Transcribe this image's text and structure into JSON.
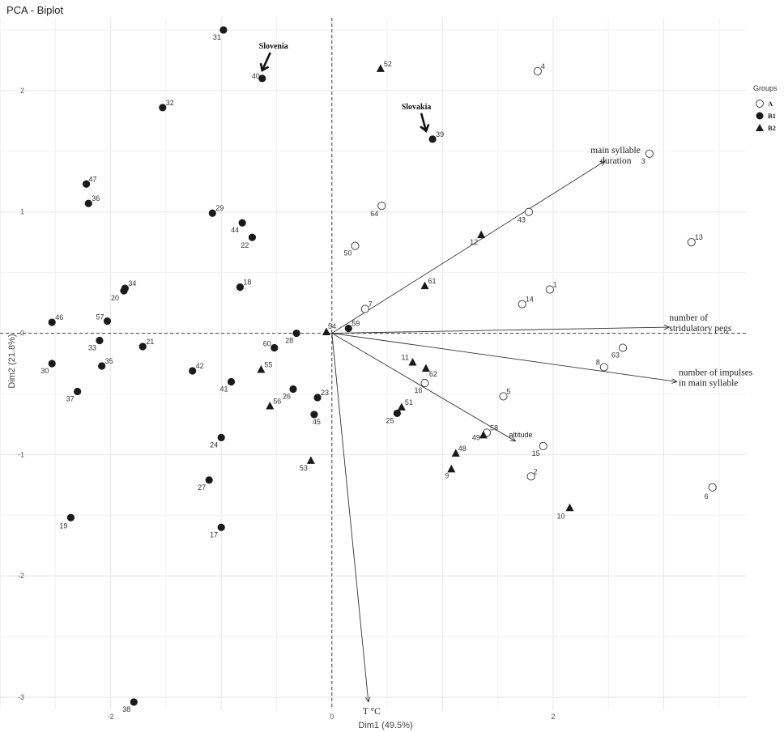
{
  "chart_data": {
    "type": "scatter",
    "title": "PCA - Biplot",
    "xlabel": "Dim1 (49.5%)",
    "ylabel": "Dim2 (21.8%)",
    "xlim": [
      -3.0,
      3.75
    ],
    "ylim": [
      -3.1,
      2.6
    ],
    "x_ticks": [
      -2,
      0,
      2
    ],
    "y_ticks": [
      -3,
      -2,
      -1,
      0,
      1,
      2
    ],
    "grid": true,
    "legend": {
      "title": "Groups",
      "position": "right",
      "entries": [
        {
          "name": "A",
          "marker": "open-circle"
        },
        {
          "name": "B1",
          "marker": "filled-circle"
        },
        {
          "name": "B2",
          "marker": "filled-triangle"
        }
      ]
    },
    "points": [
      {
        "label": "1",
        "group": "A",
        "x": 1.97,
        "y": 0.36
      },
      {
        "label": "2",
        "group": "A",
        "x": 1.8,
        "y": -1.18
      },
      {
        "label": "3",
        "group": "A",
        "x": 2.87,
        "y": 1.48
      },
      {
        "label": "4",
        "group": "A",
        "x": 1.86,
        "y": 2.16
      },
      {
        "label": "5",
        "group": "A",
        "x": 1.55,
        "y": -0.52
      },
      {
        "label": "6",
        "group": "A",
        "x": 3.44,
        "y": -1.27
      },
      {
        "label": "7",
        "group": "A",
        "x": 0.3,
        "y": 0.2
      },
      {
        "label": "8",
        "group": "A",
        "x": 2.46,
        "y": -0.28
      },
      {
        "label": "13",
        "group": "A",
        "x": 3.25,
        "y": 0.75
      },
      {
        "label": "14",
        "group": "A",
        "x": 1.72,
        "y": 0.24
      },
      {
        "label": "15",
        "group": "A",
        "x": 1.91,
        "y": -0.93
      },
      {
        "label": "16",
        "group": "A",
        "x": 0.84,
        "y": -0.41
      },
      {
        "label": "43",
        "group": "A",
        "x": 1.78,
        "y": 1.0
      },
      {
        "label": "50",
        "group": "A",
        "x": 0.21,
        "y": 0.72
      },
      {
        "label": "58",
        "group": "A",
        "x": 1.4,
        "y": -0.82
      },
      {
        "label": "63",
        "group": "A",
        "x": 2.63,
        "y": -0.12
      },
      {
        "label": "64",
        "group": "A",
        "x": 0.45,
        "y": 1.05
      },
      {
        "label": "17",
        "group": "B1",
        "x": -1.0,
        "y": -1.6
      },
      {
        "label": "18",
        "group": "B1",
        "x": -0.83,
        "y": 0.38
      },
      {
        "label": "19",
        "group": "B1",
        "x": -2.36,
        "y": -1.52
      },
      {
        "label": "20",
        "group": "B1",
        "x": -1.88,
        "y": 0.35
      },
      {
        "label": "21",
        "group": "B1",
        "x": -1.71,
        "y": -0.11
      },
      {
        "label": "22",
        "group": "B1",
        "x": -0.72,
        "y": 0.79
      },
      {
        "label": "23",
        "group": "B1",
        "x": -0.13,
        "y": -0.53
      },
      {
        "label": "24",
        "group": "B1",
        "x": -1.0,
        "y": -0.86
      },
      {
        "label": "25",
        "group": "B1",
        "x": 0.59,
        "y": -0.66
      },
      {
        "label": "26",
        "group": "B1",
        "x": -0.35,
        "y": -0.46
      },
      {
        "label": "27",
        "group": "B1",
        "x": -1.11,
        "y": -1.21
      },
      {
        "label": "28",
        "group": "B1",
        "x": -0.32,
        "y": 0.0
      },
      {
        "label": "29",
        "group": "B1",
        "x": -1.08,
        "y": 0.99
      },
      {
        "label": "30",
        "group": "B1",
        "x": -2.53,
        "y": -0.25
      },
      {
        "label": "31",
        "group": "B1",
        "x": -0.98,
        "y": 2.5
      },
      {
        "label": "32",
        "group": "B1",
        "x": -1.53,
        "y": 1.86
      },
      {
        "label": "33",
        "group": "B1",
        "x": -2.1,
        "y": -0.06
      },
      {
        "label": "34",
        "group": "B1",
        "x": -1.87,
        "y": 0.37
      },
      {
        "label": "35",
        "group": "B1",
        "x": -2.08,
        "y": -0.27
      },
      {
        "label": "36",
        "group": "B1",
        "x": -2.2,
        "y": 1.07
      },
      {
        "label": "37",
        "group": "B1",
        "x": -2.3,
        "y": -0.48
      },
      {
        "label": "38",
        "group": "B1",
        "x": -1.79,
        "y": -3.04
      },
      {
        "label": "39",
        "group": "B1",
        "x": 0.91,
        "y": 1.6
      },
      {
        "label": "40",
        "group": "B1",
        "x": -0.63,
        "y": 2.1
      },
      {
        "label": "41",
        "group": "B1",
        "x": -0.91,
        "y": -0.4
      },
      {
        "label": "42",
        "group": "B1",
        "x": -1.26,
        "y": -0.31
      },
      {
        "label": "44",
        "group": "B1",
        "x": -0.81,
        "y": 0.91
      },
      {
        "label": "45",
        "group": "B1",
        "x": -0.16,
        "y": -0.67
      },
      {
        "label": "46",
        "group": "B1",
        "x": -2.53,
        "y": 0.09
      },
      {
        "label": "47",
        "group": "B1",
        "x": -2.22,
        "y": 1.23
      },
      {
        "label": "57",
        "group": "B1",
        "x": -2.03,
        "y": 0.1
      },
      {
        "label": "59",
        "group": "B1",
        "x": 0.15,
        "y": 0.04
      },
      {
        "label": "60",
        "group": "B1",
        "x": -0.52,
        "y": -0.12
      },
      {
        "label": "9",
        "group": "B2",
        "x": 1.08,
        "y": -1.12
      },
      {
        "label": "10",
        "group": "B2",
        "x": 2.15,
        "y": -1.44
      },
      {
        "label": "11",
        "group": "B2",
        "x": 0.73,
        "y": -0.24
      },
      {
        "label": "12",
        "group": "B2",
        "x": 1.35,
        "y": 0.81
      },
      {
        "label": "48",
        "group": "B2",
        "x": 1.12,
        "y": -0.99
      },
      {
        "label": "49",
        "group": "B2",
        "x": 1.37,
        "y": -0.84
      },
      {
        "label": "51",
        "group": "B2",
        "x": 0.63,
        "y": -0.61
      },
      {
        "label": "52",
        "group": "B2",
        "x": 0.44,
        "y": 2.18
      },
      {
        "label": "53",
        "group": "B2",
        "x": -0.19,
        "y": -1.05
      },
      {
        "label": "54",
        "group": "B2",
        "x": -0.05,
        "y": 0.01
      },
      {
        "label": "55",
        "group": "B2",
        "x": -0.64,
        "y": -0.3
      },
      {
        "label": "56",
        "group": "B2",
        "x": -0.56,
        "y": -0.6
      },
      {
        "label": "61",
        "group": "B2",
        "x": 0.84,
        "y": 0.39
      },
      {
        "label": "62",
        "group": "B2",
        "x": 0.85,
        "y": -0.29
      }
    ],
    "vectors": [
      {
        "label": "main syllable duration",
        "x": 2.47,
        "y": 1.42
      },
      {
        "label": "number of stridulatory pegs",
        "x": 3.05,
        "y": 0.05
      },
      {
        "label": "number of impulses in main syllable",
        "x": 3.12,
        "y": -0.4
      },
      {
        "label": "altitude",
        "x": 1.66,
        "y": -0.89
      },
      {
        "label": "T °C",
        "x": 0.33,
        "y": -3.04
      }
    ],
    "annotations": [
      {
        "text": "Slovenia",
        "target_point": "40"
      },
      {
        "text": "Slovakia",
        "target_point": "39"
      }
    ]
  }
}
